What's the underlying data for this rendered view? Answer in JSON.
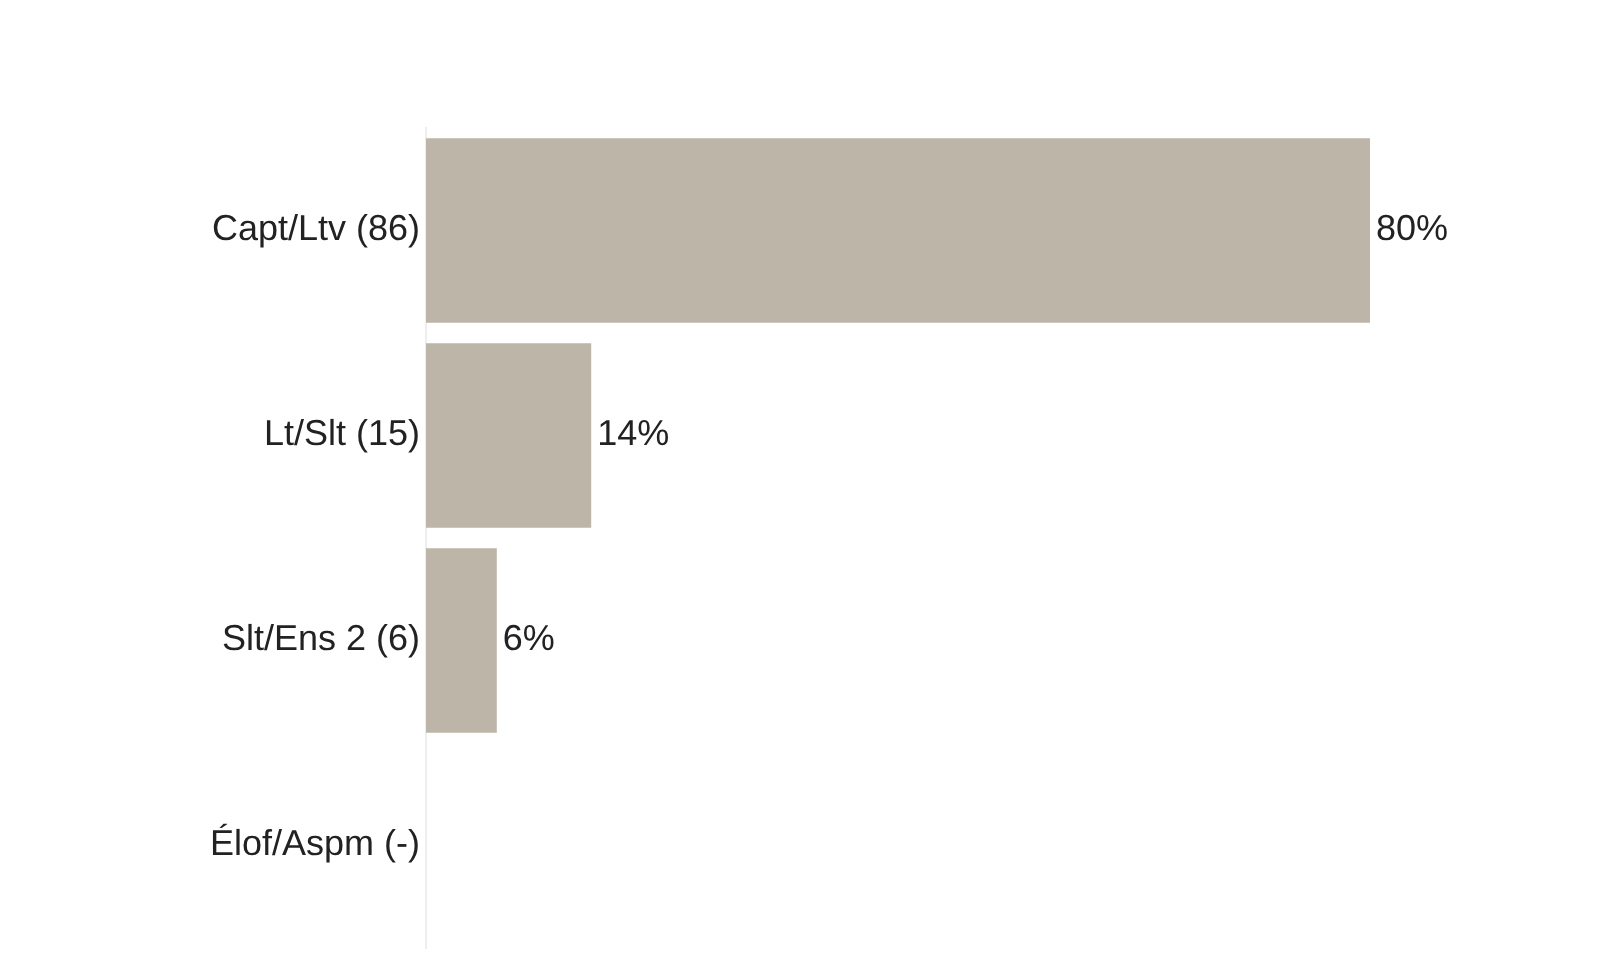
{
  "chart_data": {
    "type": "bar",
    "orientation": "horizontal",
    "categories": [
      "Capt/Ltv (86)",
      "Lt/Slt (15)",
      "Slt/Ens 2 (6)",
      "Élof/Aspm (-)"
    ],
    "values": [
      80,
      14,
      6,
      null
    ],
    "color": "#bdb5a8",
    "value_labels": [
      "80%",
      "14%",
      "6%",
      null
    ],
    "grid": false,
    "tick_labels": "y"
  }
}
